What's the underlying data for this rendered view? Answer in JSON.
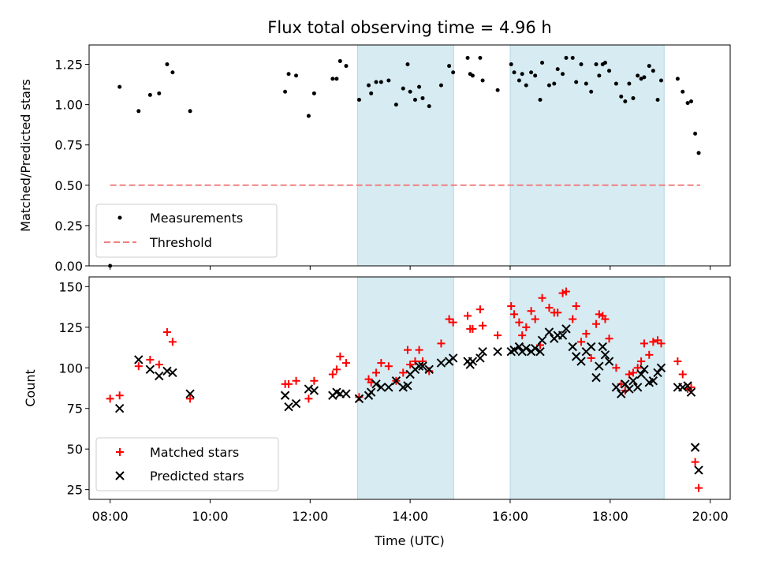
{
  "chart_data": [
    {
      "type": "scatter",
      "title": "Flux total observing time = 4.96 h",
      "xlabel": "",
      "ylabel": "Matched/Predicted stars",
      "xlim": [
        7.58,
        20.4
      ],
      "ylim": [
        0.0,
        1.37
      ],
      "yticks": [
        0.0,
        0.25,
        0.5,
        0.75,
        1.0,
        1.25
      ],
      "ytick_labels": [
        "0.00",
        "0.25",
        "0.50",
        "0.75",
        "1.00",
        "1.25"
      ],
      "xticks": [
        8,
        10,
        12,
        14,
        16,
        18,
        20
      ],
      "grid": false,
      "legend_position": "lower-left",
      "shaded_intervals": [
        [
          12.95,
          14.87
        ],
        [
          16.0,
          19.08
        ]
      ],
      "shade_color": "#add8e6",
      "series": [
        {
          "name": "Measurements",
          "marker": "dot",
          "color": "#000000",
          "points": [
            [
              8.0,
              0.0
            ],
            [
              8.19,
              1.11
            ],
            [
              8.57,
              0.96
            ],
            [
              8.8,
              1.06
            ],
            [
              8.98,
              1.07
            ],
            [
              9.14,
              1.25
            ],
            [
              9.25,
              1.2
            ],
            [
              9.6,
              0.96
            ],
            [
              11.5,
              1.08
            ],
            [
              11.57,
              1.19
            ],
            [
              11.72,
              1.18
            ],
            [
              11.97,
              0.93
            ],
            [
              12.08,
              1.07
            ],
            [
              12.45,
              1.16
            ],
            [
              12.53,
              1.16
            ],
            [
              12.6,
              1.27
            ],
            [
              12.72,
              1.24
            ],
            [
              12.98,
              1.03
            ],
            [
              13.17,
              1.12
            ],
            [
              13.22,
              1.07
            ],
            [
              13.32,
              1.14
            ],
            [
              13.42,
              1.14
            ],
            [
              13.57,
              1.15
            ],
            [
              13.72,
              1.0
            ],
            [
              13.86,
              1.1
            ],
            [
              13.95,
              1.25
            ],
            [
              14.0,
              1.08
            ],
            [
              14.1,
              1.03
            ],
            [
              14.18,
              1.11
            ],
            [
              14.25,
              1.04
            ],
            [
              14.38,
              0.99
            ],
            [
              14.62,
              1.12
            ],
            [
              14.78,
              1.24
            ],
            [
              14.86,
              1.2
            ],
            [
              15.15,
              1.29
            ],
            [
              15.2,
              1.19
            ],
            [
              15.25,
              1.18
            ],
            [
              15.4,
              1.29
            ],
            [
              15.45,
              1.15
            ],
            [
              15.75,
              1.09
            ],
            [
              16.02,
              1.25
            ],
            [
              16.08,
              1.2
            ],
            [
              16.18,
              1.15
            ],
            [
              16.24,
              1.19
            ],
            [
              16.32,
              1.12
            ],
            [
              16.42,
              1.2
            ],
            [
              16.5,
              1.18
            ],
            [
              16.6,
              1.03
            ],
            [
              16.64,
              1.26
            ],
            [
              16.78,
              1.12
            ],
            [
              16.88,
              1.13
            ],
            [
              16.95,
              1.22
            ],
            [
              17.05,
              1.19
            ],
            [
              17.12,
              1.29
            ],
            [
              17.25,
              1.29
            ],
            [
              17.32,
              1.14
            ],
            [
              17.42,
              1.25
            ],
            [
              17.52,
              1.13
            ],
            [
              17.62,
              1.08
            ],
            [
              17.72,
              1.25
            ],
            [
              17.78,
              1.18
            ],
            [
              17.85,
              1.25
            ],
            [
              17.9,
              1.26
            ],
            [
              17.98,
              1.21
            ],
            [
              18.12,
              1.13
            ],
            [
              18.22,
              1.05
            ],
            [
              18.3,
              1.02
            ],
            [
              18.38,
              1.13
            ],
            [
              18.46,
              1.04
            ],
            [
              18.55,
              1.18
            ],
            [
              18.62,
              1.16
            ],
            [
              18.68,
              1.17
            ],
            [
              18.78,
              1.24
            ],
            [
              18.86,
              1.21
            ],
            [
              18.95,
              1.03
            ],
            [
              19.02,
              1.15
            ],
            [
              19.35,
              1.16
            ],
            [
              19.45,
              1.08
            ],
            [
              19.55,
              1.01
            ],
            [
              19.62,
              1.02
            ],
            [
              19.7,
              0.82
            ],
            [
              19.77,
              0.7
            ]
          ]
        },
        {
          "name": "Threshold",
          "marker": "dashed-line",
          "color": "#f08080",
          "points": [
            [
              8.0,
              0.5
            ],
            [
              19.8,
              0.5
            ]
          ]
        }
      ]
    },
    {
      "type": "scatter",
      "title": "",
      "xlabel": "Time (UTC)",
      "ylabel": "Count",
      "xlim": [
        7.58,
        20.4
      ],
      "ylim": [
        19,
        156
      ],
      "yticks": [
        25,
        50,
        75,
        100,
        125,
        150
      ],
      "ytick_labels": [
        "25",
        "50",
        "75",
        "100",
        "125",
        "150"
      ],
      "xticks": [
        8,
        10,
        12,
        14,
        16,
        18,
        20
      ],
      "xtick_labels": [
        "08:00",
        "10:00",
        "12:00",
        "14:00",
        "16:00",
        "18:00",
        "20:00"
      ],
      "grid": false,
      "legend_position": "lower-left",
      "shaded_intervals": [
        [
          12.95,
          14.87
        ],
        [
          16.0,
          19.08
        ]
      ],
      "shade_color": "#add8e6",
      "series": [
        {
          "name": "Matched stars",
          "marker": "plus",
          "color": "#ff0000",
          "points": [
            [
              8.0,
              81
            ],
            [
              8.19,
              83
            ],
            [
              8.57,
              101
            ],
            [
              8.8,
              105
            ],
            [
              8.98,
              102
            ],
            [
              9.14,
              122
            ],
            [
              9.25,
              116
            ],
            [
              9.6,
              81
            ],
            [
              11.5,
              90
            ],
            [
              11.57,
              90
            ],
            [
              11.72,
              92
            ],
            [
              11.97,
              81
            ],
            [
              12.08,
              92
            ],
            [
              12.45,
              96
            ],
            [
              12.53,
              99
            ],
            [
              12.6,
              107
            ],
            [
              12.72,
              103
            ],
            [
              12.98,
              82
            ],
            [
              13.17,
              93
            ],
            [
              13.22,
              91
            ],
            [
              13.32,
              97
            ],
            [
              13.42,
              103
            ],
            [
              13.57,
              101
            ],
            [
              13.72,
              92
            ],
            [
              13.86,
              97
            ],
            [
              13.95,
              111
            ],
            [
              14.0,
              102
            ],
            [
              14.1,
              104
            ],
            [
              14.18,
              111
            ],
            [
              14.25,
              104
            ],
            [
              14.38,
              98
            ],
            [
              14.62,
              115
            ],
            [
              14.78,
              130
            ],
            [
              14.86,
              128
            ],
            [
              15.15,
              132
            ],
            [
              15.2,
              124
            ],
            [
              15.25,
              124
            ],
            [
              15.4,
              136
            ],
            [
              15.45,
              126
            ],
            [
              15.75,
              120
            ],
            [
              16.02,
              138
            ],
            [
              16.08,
              133
            ],
            [
              16.18,
              128
            ],
            [
              16.24,
              120
            ],
            [
              16.32,
              125
            ],
            [
              16.42,
              135
            ],
            [
              16.5,
              130
            ],
            [
              16.6,
              114
            ],
            [
              16.64,
              143
            ],
            [
              16.78,
              137
            ],
            [
              16.88,
              134
            ],
            [
              16.95,
              134
            ],
            [
              17.05,
              146
            ],
            [
              17.12,
              147
            ],
            [
              17.25,
              130
            ],
            [
              17.32,
              138
            ],
            [
              17.42,
              116
            ],
            [
              17.52,
              121
            ],
            [
              17.62,
              106
            ],
            [
              17.72,
              127
            ],
            [
              17.78,
              133
            ],
            [
              17.85,
              132
            ],
            [
              17.9,
              130
            ],
            [
              17.98,
              118
            ],
            [
              18.12,
              100
            ],
            [
              18.22,
              90
            ],
            [
              18.3,
              86
            ],
            [
              18.38,
              96
            ],
            [
              18.46,
              97
            ],
            [
              18.55,
              100
            ],
            [
              18.62,
              104
            ],
            [
              18.68,
              115
            ],
            [
              18.78,
              108
            ],
            [
              18.86,
              116
            ],
            [
              18.95,
              117
            ],
            [
              19.02,
              115
            ],
            [
              19.35,
              104
            ],
            [
              19.45,
              96
            ],
            [
              19.55,
              87
            ],
            [
              19.62,
              88
            ],
            [
              19.7,
              42
            ],
            [
              19.77,
              26
            ]
          ]
        },
        {
          "name": "Predicted stars",
          "marker": "x",
          "color": "#000000",
          "points": [
            [
              8.19,
              75
            ],
            [
              8.57,
              105
            ],
            [
              8.8,
              99
            ],
            [
              8.98,
              95
            ],
            [
              9.14,
              98
            ],
            [
              9.25,
              97
            ],
            [
              9.6,
              84
            ],
            [
              11.5,
              83
            ],
            [
              11.57,
              76
            ],
            [
              11.72,
              78
            ],
            [
              11.97,
              87
            ],
            [
              12.08,
              86
            ],
            [
              12.45,
              83
            ],
            [
              12.53,
              85
            ],
            [
              12.6,
              84
            ],
            [
              12.72,
              84
            ],
            [
              12.98,
              81
            ],
            [
              13.17,
              83
            ],
            [
              13.22,
              85
            ],
            [
              13.32,
              90
            ],
            [
              13.42,
              88
            ],
            [
              13.57,
              88
            ],
            [
              13.72,
              92
            ],
            [
              13.86,
              88
            ],
            [
              13.95,
              89
            ],
            [
              14.0,
              96
            ],
            [
              14.1,
              99
            ],
            [
              14.18,
              101
            ],
            [
              14.25,
              101
            ],
            [
              14.38,
              99
            ],
            [
              14.62,
              103
            ],
            [
              14.78,
              104
            ],
            [
              14.86,
              106
            ],
            [
              15.15,
              104
            ],
            [
              15.2,
              102
            ],
            [
              15.25,
              104
            ],
            [
              15.4,
              106
            ],
            [
              15.45,
              110
            ],
            [
              15.75,
              110
            ],
            [
              16.02,
              110
            ],
            [
              16.08,
              111
            ],
            [
              16.18,
              113
            ],
            [
              16.24,
              110
            ],
            [
              16.32,
              112
            ],
            [
              16.42,
              110
            ],
            [
              16.5,
              112
            ],
            [
              16.6,
              110
            ],
            [
              16.64,
              117
            ],
            [
              16.78,
              122
            ],
            [
              16.88,
              118
            ],
            [
              16.95,
              120
            ],
            [
              17.05,
              120
            ],
            [
              17.12,
              124
            ],
            [
              17.25,
              113
            ],
            [
              17.32,
              107
            ],
            [
              17.42,
              104
            ],
            [
              17.52,
              110
            ],
            [
              17.62,
              113
            ],
            [
              17.72,
              94
            ],
            [
              17.78,
              101
            ],
            [
              17.85,
              113
            ],
            [
              17.9,
              108
            ],
            [
              17.98,
              104
            ],
            [
              18.12,
              88
            ],
            [
              18.22,
              84
            ],
            [
              18.3,
              90
            ],
            [
              18.38,
              87
            ],
            [
              18.46,
              92
            ],
            [
              18.55,
              88
            ],
            [
              18.62,
              96
            ],
            [
              18.68,
              99
            ],
            [
              18.78,
              91
            ],
            [
              18.86,
              92
            ],
            [
              18.95,
              97
            ],
            [
              19.02,
              100
            ],
            [
              19.35,
              88
            ],
            [
              19.45,
              88
            ],
            [
              19.55,
              89
            ],
            [
              19.62,
              85
            ],
            [
              19.7,
              51
            ],
            [
              19.77,
              37
            ]
          ]
        }
      ]
    }
  ]
}
